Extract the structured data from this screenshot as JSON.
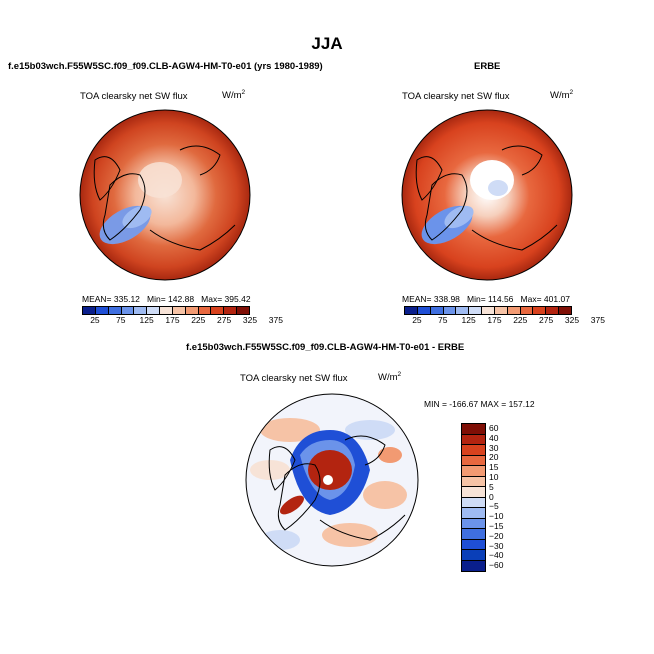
{
  "page": {
    "title": "JJA"
  },
  "top_left": {
    "header": "f.e15b03wch.F55W5SC.f09_f09.CLB-AGW4-HM-T0-e01 (yrs 1980-1989)",
    "variable": "TOA clearsky net SW flux",
    "units_base": "W/m",
    "units_exp": "2",
    "stats": {
      "mean_label": "MEAN=",
      "mean": "335.12",
      "min_label": "Min=",
      "min": "142.88",
      "max_label": "Max=",
      "max": "395.42"
    }
  },
  "top_right": {
    "header": "ERBE",
    "variable": "TOA clearsky net SW flux",
    "units_base": "W/m",
    "units_exp": "2",
    "stats": {
      "mean_label": "MEAN=",
      "mean": "338.98",
      "min_label": "Min=",
      "min": "114.56",
      "max_label": "Max=",
      "max": "401.07"
    }
  },
  "bottom": {
    "header": "f.e15b03wch.F55W5SC.f09_f09.CLB-AGW4-HM-T0-e01 - ERBE",
    "variable": "TOA clearsky net SW flux",
    "units_base": "W/m",
    "units_exp": "2",
    "minmax": "MIN = -166.67  MAX = 157.12"
  },
  "colorbar_abs": {
    "colors": [
      "#0a1f8c",
      "#1f4fd6",
      "#3f6fe0",
      "#6b93ea",
      "#9fbbf2",
      "#cfdcf6",
      "#f7e3d7",
      "#f6c3a6",
      "#f29a72",
      "#e8683f",
      "#d8421e",
      "#b32410",
      "#7f0f06"
    ],
    "ticks": [
      "25",
      "75",
      "125",
      "175",
      "225",
      "275",
      "325",
      "375"
    ]
  },
  "colorbar_diff": {
    "colors": [
      "#7f0f06",
      "#b32410",
      "#d8421e",
      "#e8683f",
      "#f29a72",
      "#f6c3a6",
      "#f7e3d7",
      "#cfdcf6",
      "#9fbbf2",
      "#6b93ea",
      "#3f6fe0",
      "#1f4fd6",
      "#0a3fb8",
      "#0a1f8c"
    ],
    "ticks": [
      "60",
      "40",
      "30",
      "20",
      "15",
      "10",
      "5",
      "0",
      "−5",
      "−10",
      "−15",
      "−20",
      "−30",
      "−40",
      "−60"
    ]
  },
  "chart_data": [
    {
      "type": "heatmap",
      "title": "TOA clearsky net SW flux",
      "subtitle": "f.e15b03wch.F55W5SC.f09_f09.CLB-AGW4-HM-T0-e01 (yrs 1980-1989)",
      "units": "W/m2",
      "projection": "north polar stereographic",
      "stats": {
        "mean": 335.12,
        "min": 142.88,
        "max": 395.42
      },
      "levels": [
        25,
        75,
        125,
        175,
        225,
        275,
        325,
        375
      ]
    },
    {
      "type": "heatmap",
      "title": "TOA clearsky net SW flux",
      "subtitle": "ERBE",
      "units": "W/m2",
      "projection": "north polar stereographic",
      "stats": {
        "mean": 338.98,
        "min": 114.56,
        "max": 401.07
      },
      "levels": [
        25,
        75,
        125,
        175,
        225,
        275,
        325,
        375
      ]
    },
    {
      "type": "heatmap",
      "title": "TOA clearsky net SW flux",
      "subtitle": "f.e15b03wch.F55W5SC.f09_f09.CLB-AGW4-HM-T0-e01 - ERBE",
      "units": "W/m2",
      "projection": "north polar stereographic",
      "stats": {
        "min": -166.67,
        "max": 157.12
      },
      "levels": [
        -60,
        -40,
        -30,
        -20,
        -15,
        -10,
        -5,
        0,
        5,
        10,
        15,
        20,
        30,
        40,
        60
      ]
    }
  ]
}
